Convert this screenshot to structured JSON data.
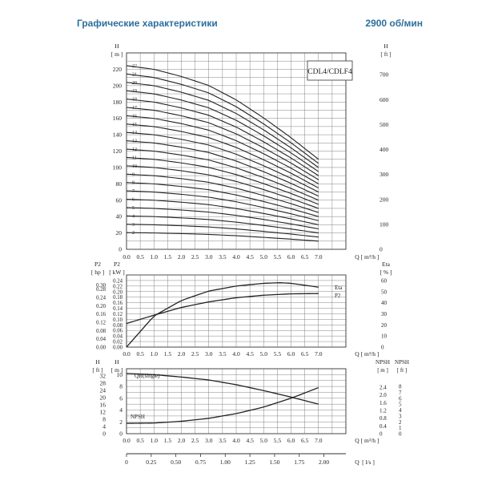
{
  "header": {
    "title": "Графические характеристики",
    "speed": "2900 об/мин"
  },
  "chart_data": [
    {
      "id": "head",
      "type": "line",
      "title": "CDL4/CDLF4",
      "ylabel_left": "H",
      "yunit_left": "[ m ]",
      "ylabel_right": "H",
      "yunit_right": "[ ft ]",
      "xlabel": "Q",
      "xunit": "[ m³/h ]",
      "xlim": [
        0,
        8
      ],
      "ylim": [
        0,
        240
      ],
      "ylim_right": [
        0,
        800
      ],
      "xticks": [
        "0.0",
        "0.5",
        "1.0",
        "1.5",
        "2.0",
        "2.5",
        "3.0",
        "3.5",
        "4.0",
        "4.5",
        "5.0",
        "5.5",
        "6.0",
        "6.5",
        "7.0"
      ],
      "yticks_left": [
        "0",
        "20",
        "40",
        "60",
        "80",
        "100",
        "120",
        "140",
        "160",
        "180",
        "200",
        "220"
      ],
      "yticks_right": [
        "0",
        "100",
        "200",
        "300",
        "400",
        "500",
        "600",
        "700"
      ],
      "stage_labels": [
        "22",
        "21",
        "20",
        "19",
        "18",
        "17",
        "16",
        "15",
        "14",
        "13",
        "12",
        "11",
        "10",
        "9",
        "8",
        "7",
        "6",
        "5",
        "4",
        "3",
        "2"
      ],
      "stages": [
        22,
        21,
        20,
        19,
        18,
        17,
        16,
        15,
        14,
        13,
        12,
        11,
        10,
        9,
        8,
        7,
        6,
        5,
        4,
        3,
        2
      ],
      "per_stage_q": [
        0,
        1,
        2,
        3,
        4,
        5,
        6,
        7
      ],
      "per_stage_h": [
        10.2,
        10.0,
        9.6,
        9.1,
        8.3,
        7.3,
        6.2,
        5.0
      ],
      "x_end": 7.0
    },
    {
      "id": "power",
      "type": "line",
      "ylabel_left_outer": "P2",
      "yunit_left_outer": "[ hp ]",
      "ylabel_left": "P2",
      "yunit_left": "[ kW ]",
      "ylabel_right": "Eta",
      "yunit_right": "[ % ]",
      "xlabel": "Q",
      "xunit": "[ m³/h ]",
      "xlim": [
        0,
        8
      ],
      "ylim": [
        0,
        0.26
      ],
      "ylim_right": [
        0,
        65
      ],
      "xticks": [
        "0.0",
        "0.5",
        "1.0",
        "1.5",
        "2.0",
        "2.5",
        "3.0",
        "3.5",
        "4.0",
        "4.5",
        "5.0",
        "5.5",
        "6.0",
        "6.5",
        "7.0"
      ],
      "yticks_hp": [
        "0.00",
        "0.04",
        "0.08",
        "0.12",
        "0.16",
        "0.20",
        "0.24",
        "0.28",
        "0.30"
      ],
      "yticks_kw": [
        "0.00",
        "0.02",
        "0.04",
        "0.06",
        "0.08",
        "0.10",
        "0.12",
        "0.14",
        "0.16",
        "0.18",
        "0.20",
        "0.22",
        "0.24"
      ],
      "yticks_eta": [
        "0",
        "10",
        "20",
        "30",
        "40",
        "50",
        "60"
      ],
      "series": [
        {
          "name": "Eta",
          "x": [
            0,
            1,
            2,
            3,
            4,
            5,
            5.6,
            6,
            7
          ],
          "y": [
            0,
            28,
            42,
            50.5,
            55,
            57.5,
            58,
            57.5,
            54
          ]
        },
        {
          "name": "P2",
          "x": [
            0,
            1,
            2,
            3,
            4,
            5,
            6,
            7
          ],
          "y": [
            0.085,
            0.115,
            0.143,
            0.163,
            0.178,
            0.187,
            0.192,
            0.193
          ]
        }
      ]
    },
    {
      "id": "npsh",
      "type": "line",
      "ylabel_left_outer": "H",
      "yunit_left_outer": "[ ft ]",
      "ylabel_left": "H",
      "yunit_left": "[ m ]",
      "ylabel_right": "NPSH",
      "yunit_right": "[ m ]",
      "ylabel_right_outer": "NPSH",
      "yunit_right_outer": "[ ft ]",
      "xlabel": "Q",
      "xunit": "[ m³/h ]",
      "xlabel2": "Q",
      "xunit2": "[ l/s ]",
      "xlim": [
        0,
        8
      ],
      "ylim": [
        0,
        11
      ],
      "xticks": [
        "0.0",
        "0.5",
        "1.0",
        "1.5",
        "2.0",
        "2.5",
        "3.0",
        "3.5",
        "4.0",
        "4.5",
        "5.0",
        "5.5",
        "6.0",
        "6.5",
        "7.0"
      ],
      "xticks_ls": [
        "0",
        "0.25",
        "0.50",
        "0.75",
        "1.00",
        "1.25",
        "1.50",
        "1.75",
        "2.00"
      ],
      "yticks_m": [
        "0",
        "2",
        "4",
        "6",
        "8",
        "10"
      ],
      "yticks_ft": [
        "0",
        "4",
        "8",
        "12",
        "16",
        "20",
        "24",
        "28",
        "32"
      ],
      "yticks_npsh_m": [
        "0",
        "0.4",
        "0.8",
        "1.2",
        "1.6",
        "2.0",
        "2.4"
      ],
      "yticks_npsh_ft": [
        "0",
        "1",
        "2",
        "3",
        "4",
        "5",
        "6",
        "7",
        "8"
      ],
      "series": [
        {
          "name": "QH(single)",
          "x": [
            0,
            1,
            2,
            3,
            4,
            5,
            6,
            7
          ],
          "y": [
            10.2,
            10.0,
            9.6,
            9.1,
            8.3,
            7.3,
            6.2,
            5.0
          ]
        },
        {
          "name": "NPSH",
          "x": [
            0,
            1,
            2,
            3,
            4,
            5,
            6,
            7
          ],
          "y": [
            1.75,
            1.8,
            2.1,
            2.6,
            3.4,
            4.5,
            6.0,
            7.8
          ]
        }
      ]
    }
  ]
}
